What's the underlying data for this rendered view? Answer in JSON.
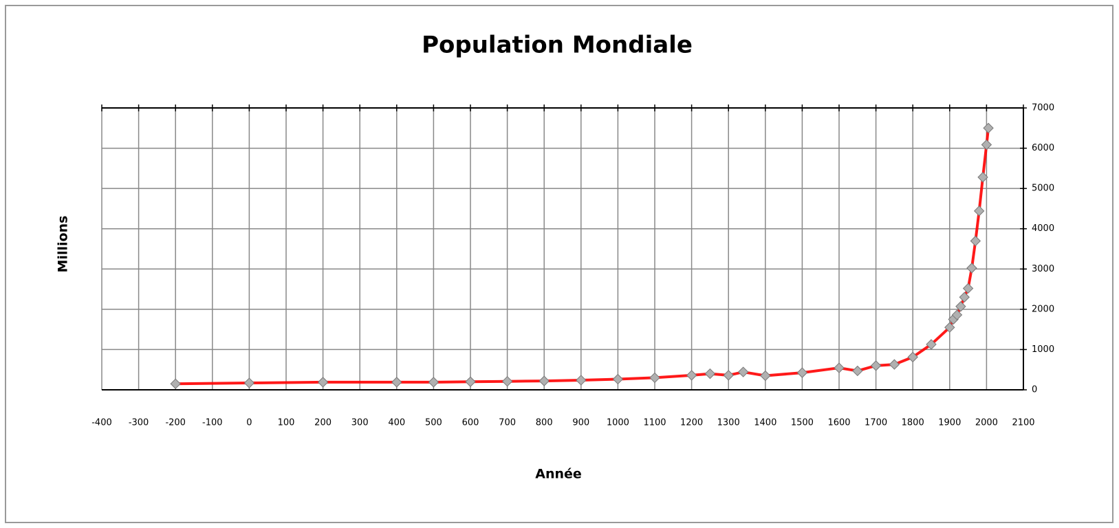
{
  "chart_data": {
    "type": "line",
    "title": "Population Mondiale",
    "x_label": "Année",
    "y_label": "Millions",
    "x": [
      -200,
      0,
      200,
      400,
      500,
      600,
      700,
      800,
      900,
      1000,
      1100,
      1200,
      1250,
      1300,
      1340,
      1400,
      1500,
      1600,
      1650,
      1700,
      1750,
      1800,
      1850,
      1900,
      1910,
      1920,
      1930,
      1940,
      1950,
      1960,
      1970,
      1980,
      1990,
      2000,
      2005
    ],
    "values": [
      150,
      170,
      190,
      190,
      190,
      200,
      210,
      220,
      240,
      265,
      300,
      360,
      400,
      360,
      443,
      350,
      425,
      545,
      470,
      600,
      630,
      813,
      1128,
      1550,
      1750,
      1860,
      2070,
      2300,
      2519,
      3024,
      3697,
      4442,
      5280,
      6086,
      6500
    ],
    "color": "#ff0000",
    "marker_color": "#b0b0b0",
    "xlim": [
      -400,
      2100
    ],
    "xticks": [
      -400,
      -300,
      -200,
      -100,
      0,
      100,
      200,
      300,
      400,
      500,
      600,
      700,
      800,
      900,
      1000,
      1100,
      1200,
      1300,
      1400,
      1500,
      1600,
      1700,
      1800,
      1900,
      2000,
      2100
    ],
    "ylim": [
      0,
      7000
    ],
    "yticks": [
      0,
      1000,
      2000,
      3000,
      4000,
      5000,
      6000,
      7000
    ],
    "y_axis_side": "right",
    "grid": true
  }
}
